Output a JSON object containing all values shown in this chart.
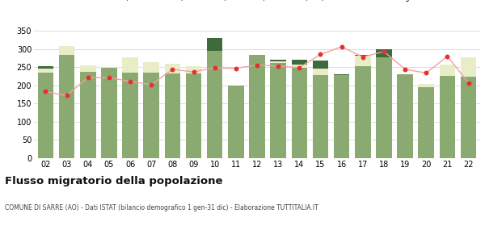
{
  "years": [
    "02",
    "03",
    "04",
    "05",
    "06",
    "07",
    "08",
    "09",
    "10",
    "11",
    "12",
    "13",
    "14",
    "15",
    "16",
    "17",
    "18",
    "19",
    "20",
    "21",
    "22"
  ],
  "iscritti_comuni": [
    234,
    284,
    238,
    249,
    234,
    235,
    232,
    232,
    295,
    200,
    283,
    262,
    248,
    228,
    228,
    252,
    278,
    231,
    195,
    226,
    224
  ],
  "iscritti_estero": [
    12,
    24,
    18,
    1,
    42,
    28,
    28,
    20,
    0,
    0,
    0,
    4,
    10,
    18,
    0,
    29,
    0,
    0,
    8,
    32,
    52
  ],
  "iscritti_altri": [
    6,
    0,
    0,
    0,
    0,
    0,
    0,
    0,
    36,
    0,
    0,
    4,
    12,
    22,
    2,
    2,
    22,
    0,
    0,
    0,
    0
  ],
  "cancellati": [
    183,
    172,
    222,
    221,
    211,
    202,
    244,
    237,
    248,
    247,
    256,
    253,
    249,
    285,
    306,
    278,
    293,
    244,
    234,
    280,
    207
  ],
  "color_comuni": "#8aaa72",
  "color_estero": "#e8edc8",
  "color_altri": "#3d6b3d",
  "color_cancellati": "#e8302a",
  "color_cancellati_line": "#f4a0a0",
  "ylim": [
    0,
    360
  ],
  "yticks": [
    0,
    50,
    100,
    150,
    200,
    250,
    300,
    350
  ],
  "title": "Flusso migratorio della popolazione",
  "subtitle": "COMUNE DI SARRE (AO) - Dati ISTAT (bilancio demografico 1 gen-31 dic) - Elaborazione TUTTITALIA.IT",
  "background_color": "#ffffff",
  "grid_color": "#d8d8d8"
}
